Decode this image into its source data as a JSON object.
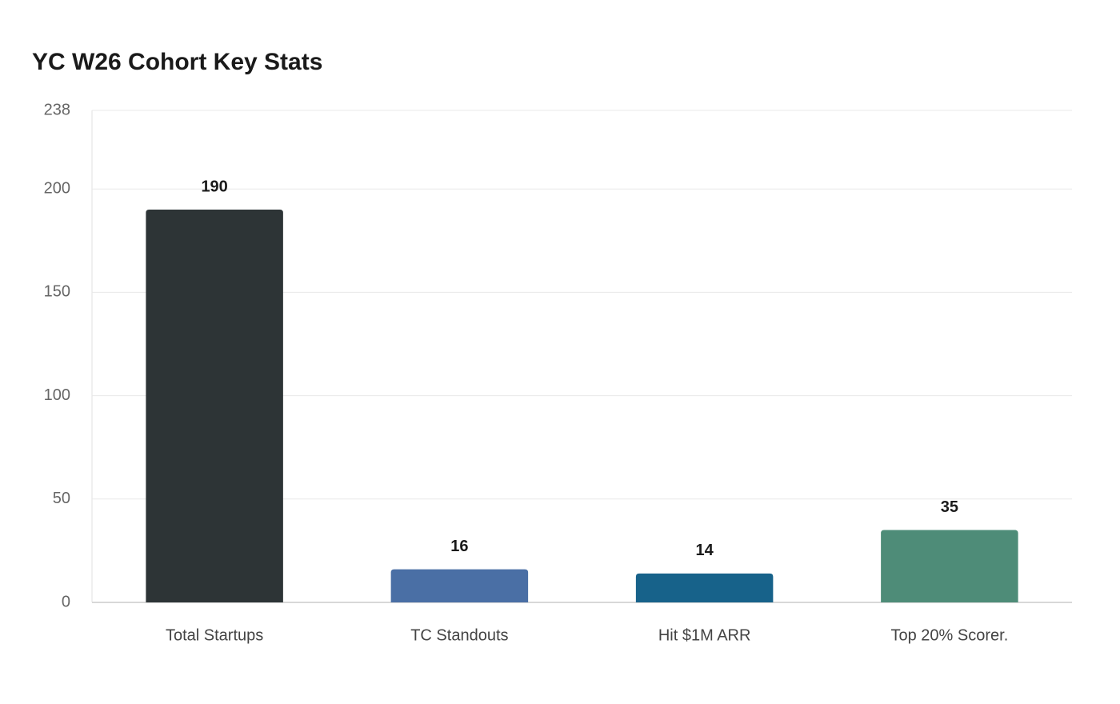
{
  "chart_data": {
    "type": "bar",
    "title": "YC W26 Cohort Key Stats",
    "categories": [
      "Total Startups",
      "TC Standouts",
      "Hit $1M ARR",
      "Top 20% Scorer."
    ],
    "values": [
      190,
      16,
      14,
      35
    ],
    "colors": [
      "#2d3436",
      "#4a6fa5",
      "#17628a",
      "#4e8c78"
    ],
    "ylim": [
      0,
      238
    ],
    "yticks": [
      0,
      50,
      100,
      150,
      200,
      238
    ],
    "grid": true
  }
}
